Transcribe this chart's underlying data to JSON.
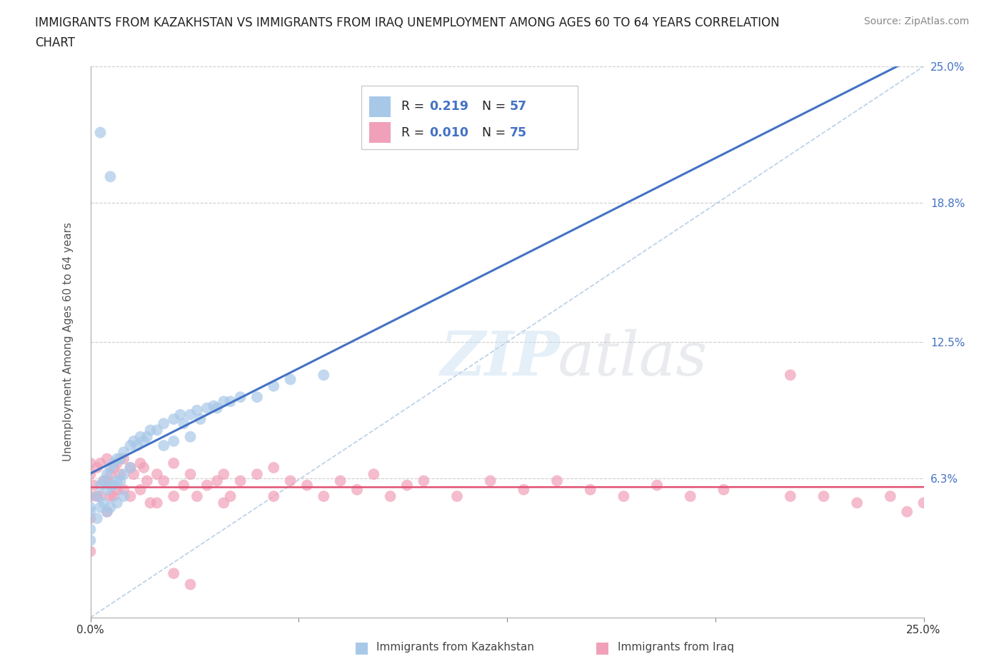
{
  "title_line1": "IMMIGRANTS FROM KAZAKHSTAN VS IMMIGRANTS FROM IRAQ UNEMPLOYMENT AMONG AGES 60 TO 64 YEARS CORRELATION",
  "title_line2": "CHART",
  "source": "Source: ZipAtlas.com",
  "ylabel": "Unemployment Among Ages 60 to 64 years",
  "xlim": [
    0.0,
    0.25
  ],
  "ylim": [
    0.0,
    0.25
  ],
  "ytick_positions": [
    0.0,
    0.063,
    0.125,
    0.188,
    0.25
  ],
  "ytick_labels": [
    "",
    "6.3%",
    "12.5%",
    "18.8%",
    "25.0%"
  ],
  "xtick_positions": [
    0.0,
    0.0625,
    0.125,
    0.1875,
    0.25
  ],
  "xtick_labels": [
    "0.0%",
    "",
    "",
    "",
    "25.0%"
  ],
  "grid_color": "#cccccc",
  "background_color": "#ffffff",
  "legend_label1": "Immigrants from Kazakhstan",
  "legend_label2": "Immigrants from Iraq",
  "color_kaz": "#a8c8e8",
  "color_iraq": "#f0a0b8",
  "line_color_kaz": "#4472c4",
  "line_color_iraq": "#e05070",
  "diag_line_color": "#8ab0d8",
  "kaz_x": [
    0.0,
    0.0,
    0.0,
    0.0,
    0.002,
    0.002,
    0.003,
    0.003,
    0.004,
    0.004,
    0.005,
    0.005,
    0.005,
    0.006,
    0.006,
    0.006,
    0.007,
    0.007,
    0.008,
    0.008,
    0.008,
    0.009,
    0.009,
    0.01,
    0.01,
    0.01,
    0.012,
    0.012,
    0.013,
    0.014,
    0.015,
    0.016,
    0.017,
    0.018,
    0.02,
    0.022,
    0.022,
    0.025,
    0.025,
    0.027,
    0.028,
    0.03,
    0.03,
    0.032,
    0.033,
    0.035,
    0.037,
    0.038,
    0.04,
    0.042,
    0.045,
    0.05,
    0.055,
    0.06,
    0.07,
    0.003,
    0.006
  ],
  "kaz_y": [
    0.05,
    0.048,
    0.04,
    0.035,
    0.055,
    0.045,
    0.06,
    0.05,
    0.062,
    0.052,
    0.065,
    0.058,
    0.048,
    0.068,
    0.06,
    0.05,
    0.07,
    0.06,
    0.072,
    0.062,
    0.052,
    0.072,
    0.062,
    0.075,
    0.065,
    0.055,
    0.078,
    0.068,
    0.08,
    0.078,
    0.082,
    0.08,
    0.082,
    0.085,
    0.085,
    0.088,
    0.078,
    0.09,
    0.08,
    0.092,
    0.088,
    0.092,
    0.082,
    0.094,
    0.09,
    0.095,
    0.096,
    0.095,
    0.098,
    0.098,
    0.1,
    0.1,
    0.105,
    0.108,
    0.11,
    0.22,
    0.2
  ],
  "iraq_x": [
    0.0,
    0.0,
    0.0,
    0.0,
    0.0,
    0.001,
    0.002,
    0.002,
    0.003,
    0.003,
    0.004,
    0.005,
    0.005,
    0.005,
    0.006,
    0.006,
    0.007,
    0.007,
    0.008,
    0.008,
    0.009,
    0.01,
    0.01,
    0.012,
    0.012,
    0.013,
    0.015,
    0.015,
    0.016,
    0.017,
    0.018,
    0.02,
    0.02,
    0.022,
    0.025,
    0.025,
    0.028,
    0.03,
    0.032,
    0.035,
    0.038,
    0.04,
    0.04,
    0.042,
    0.045,
    0.05,
    0.055,
    0.055,
    0.06,
    0.065,
    0.07,
    0.075,
    0.08,
    0.085,
    0.09,
    0.095,
    0.1,
    0.11,
    0.12,
    0.13,
    0.14,
    0.15,
    0.16,
    0.17,
    0.18,
    0.19,
    0.21,
    0.21,
    0.22,
    0.23,
    0.24,
    0.245,
    0.25,
    0.025,
    0.03
  ],
  "iraq_y": [
    0.07,
    0.065,
    0.055,
    0.045,
    0.03,
    0.06,
    0.068,
    0.055,
    0.07,
    0.055,
    0.062,
    0.072,
    0.062,
    0.048,
    0.065,
    0.055,
    0.068,
    0.055,
    0.07,
    0.058,
    0.065,
    0.072,
    0.058,
    0.068,
    0.055,
    0.065,
    0.07,
    0.058,
    0.068,
    0.062,
    0.052,
    0.065,
    0.052,
    0.062,
    0.07,
    0.055,
    0.06,
    0.065,
    0.055,
    0.06,
    0.062,
    0.065,
    0.052,
    0.055,
    0.062,
    0.065,
    0.068,
    0.055,
    0.062,
    0.06,
    0.055,
    0.062,
    0.058,
    0.065,
    0.055,
    0.06,
    0.062,
    0.055,
    0.062,
    0.058,
    0.062,
    0.058,
    0.055,
    0.06,
    0.055,
    0.058,
    0.055,
    0.11,
    0.055,
    0.052,
    0.055,
    0.048,
    0.052,
    0.02,
    0.015
  ]
}
